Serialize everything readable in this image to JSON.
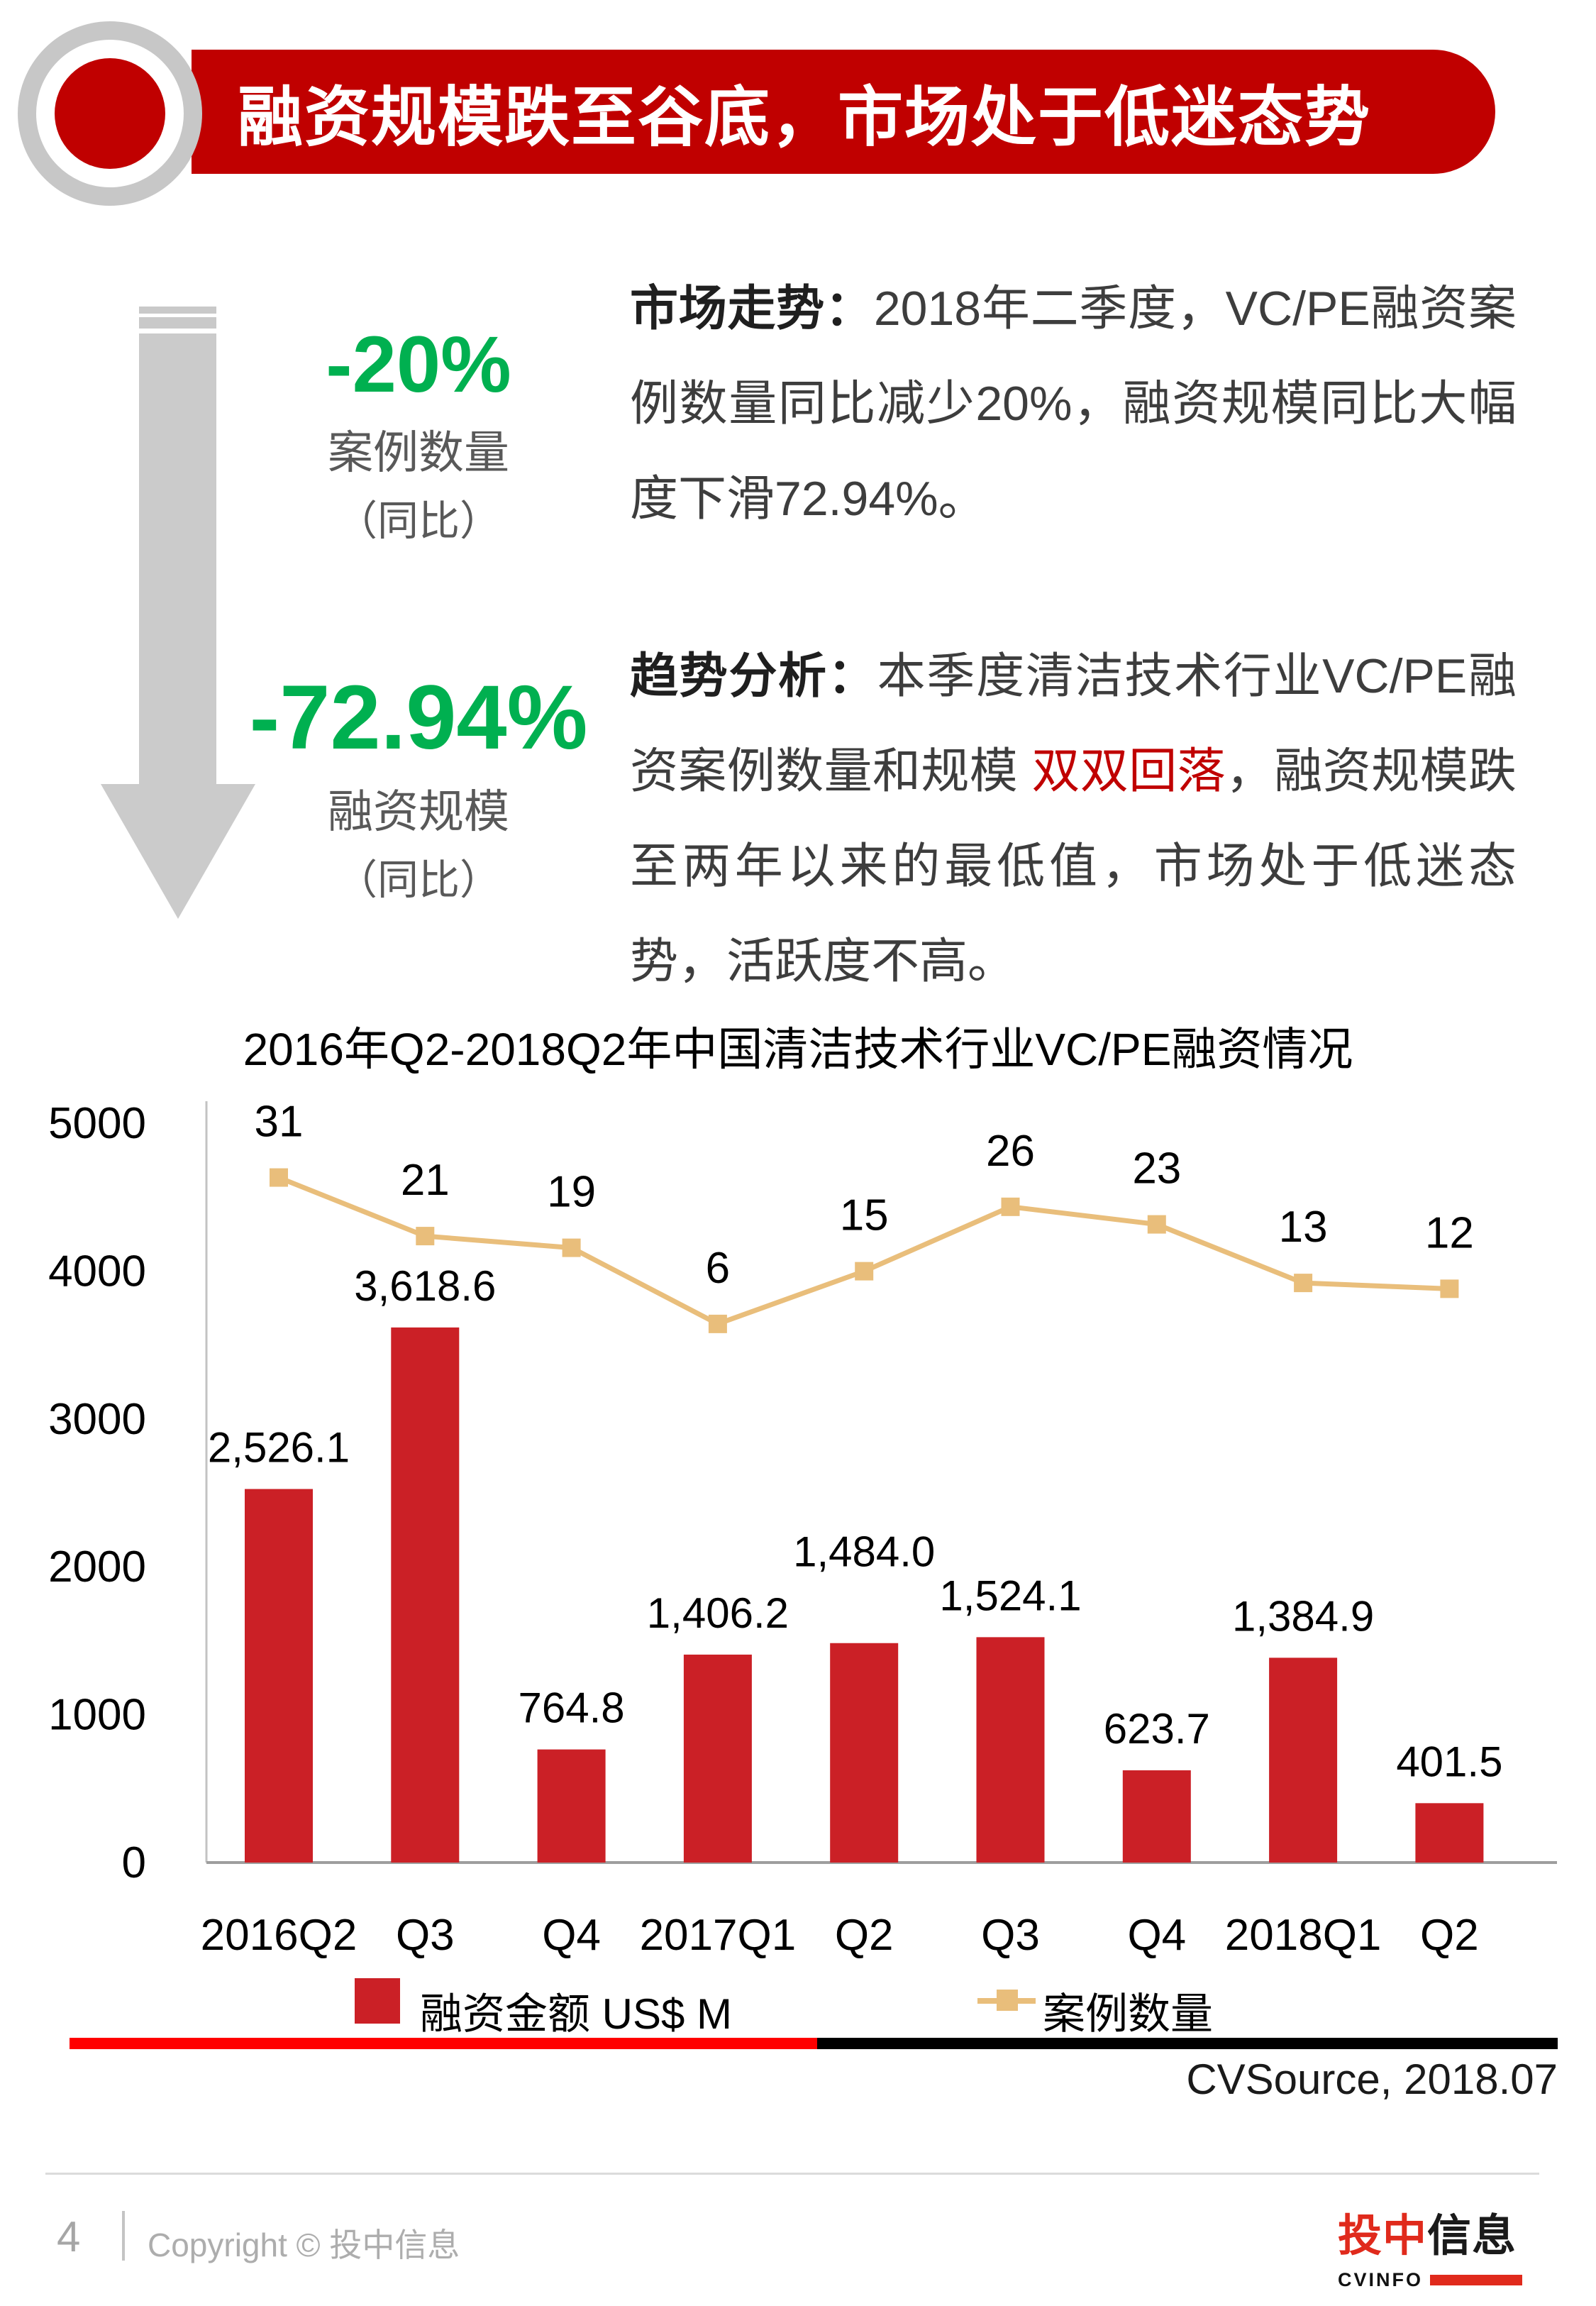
{
  "header": {
    "title": "融资规模跌至谷底，市场处于低迷态势"
  },
  "stats": [
    {
      "value": "-20%",
      "label": "案例数量",
      "sub": "（同比）"
    },
    {
      "value": "-72.94%",
      "label": "融资规模",
      "sub": "（同比）"
    }
  ],
  "analysis": {
    "p1_lead": "市场走势：",
    "p1_body": "2018年二季度，VC/PE融资案例数量同比减少20%，融资规模同比大幅度下滑72.94%。",
    "p2_lead": "趋势分析：",
    "p2_before": "本季度清洁技术行业VC/PE融资案例数量和规模 ",
    "p2_highlight": "双双回落",
    "p2_after": "，融资规模跌至两年以来的最低值，市场处于低迷态势，活跃度不高。"
  },
  "chart_data": {
    "type": "bar+line",
    "title": "2016年Q2-2018Q2年中国清洁技术行业VC/PE融资情况",
    "categories": [
      "2016Q2",
      "Q3",
      "Q4",
      "2017Q1",
      "Q2",
      "Q3",
      "Q4",
      "2018Q1",
      "Q2"
    ],
    "series": [
      {
        "name": "融资金额 US$ M",
        "type": "bar",
        "values": [
          2526.1,
          3618.6,
          764.8,
          1406.2,
          1484.0,
          1524.1,
          623.7,
          1384.9,
          401.5
        ],
        "labels": [
          "2,526.1",
          "3,618.6",
          "764.8",
          "1,406.2",
          "1,484.0",
          "1,524.1",
          "623.7",
          "1,384.9",
          "401.5"
        ],
        "color": "#CB2026"
      },
      {
        "name": "案例数量",
        "type": "line",
        "values": [
          31,
          21,
          19,
          6,
          15,
          26,
          23,
          13,
          12
        ],
        "color": "#E9BE7B"
      }
    ],
    "ylim": [
      0,
      5000
    ],
    "yticks": [
      0,
      1000,
      2000,
      3000,
      4000,
      5000
    ],
    "grid": false,
    "legend_position": "bottom"
  },
  "legend": {
    "bar": "融资金额 US$ M",
    "line": "案例数量"
  },
  "source": "CVSource, 2018.07",
  "footer": {
    "page": "4",
    "copyright": "Copyright © 投中信息",
    "logo_red": "投中",
    "logo_black": "信息",
    "logo_en": "CVINFO"
  },
  "colors": {
    "brand_red": "#C00000",
    "bright_red": "#FF0000",
    "bar_red": "#CB2026",
    "line_tan": "#E9BE7B",
    "green": "#00B050",
    "highlight_red": "#C00000",
    "logo_red": "#E02A1C"
  }
}
